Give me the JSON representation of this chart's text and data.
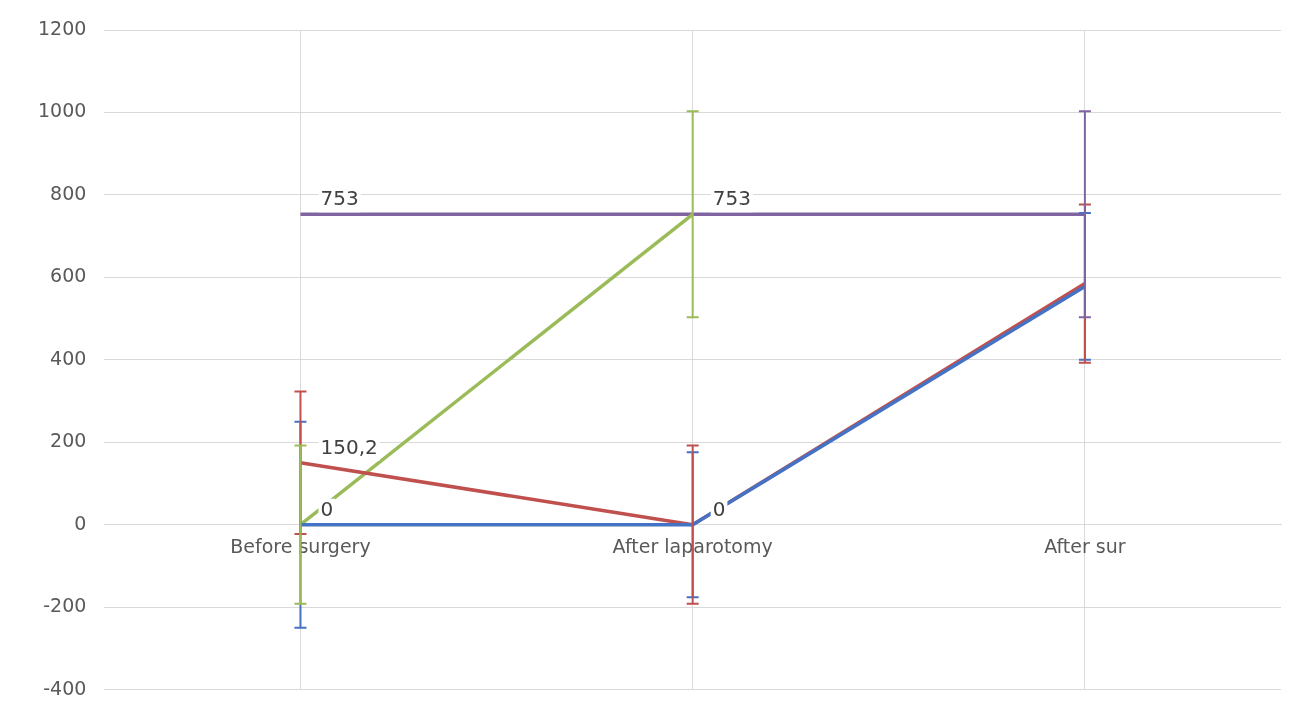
{
  "chart_data": {
    "type": "line",
    "categories": [
      "Before surgery",
      "After laparotomy",
      "After sur"
    ],
    "series": [
      {
        "color": "#4472c4",
        "values": [
          0,
          0,
          578
        ],
        "errors": [
          250,
          176,
          178
        ],
        "value_labels": [
          "0",
          "0",
          null
        ]
      },
      {
        "color": "#c0504d",
        "values": [
          150.2,
          0,
          585
        ],
        "errors": [
          173,
          192,
          192
        ],
        "value_labels": [
          "150,2",
          null,
          null
        ]
      },
      {
        "color": "#9bbb59",
        "values": [
          0,
          753,
          null
        ],
        "errors": [
          192,
          250,
          null
        ]
      },
      {
        "color": "#8064a2",
        "values": [
          753,
          753,
          753
        ],
        "errors": [
          null,
          null,
          250
        ],
        "value_labels": [
          "753",
          "753",
          null
        ]
      }
    ],
    "ylim": [
      -400,
      1200
    ],
    "yticks": [
      -400,
      -200,
      0,
      200,
      400,
      600,
      800,
      1000,
      1200
    ],
    "grid": true,
    "legend": false,
    "marker": "none",
    "line_style": "solid"
  }
}
